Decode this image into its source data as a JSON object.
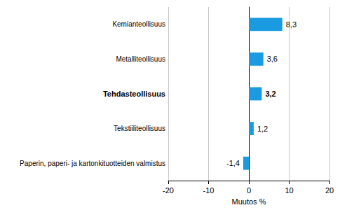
{
  "chart_data": {
    "type": "bar",
    "orientation": "horizontal",
    "categories": [
      "Kemianteollisuus",
      "Metalliteollisuus",
      "Tehdasteollisuus",
      "Tekstiiliteollisuus",
      "Paperin, paperi- ja kartonkituotteiden valmistus"
    ],
    "values": [
      8.3,
      3.6,
      3.2,
      1.2,
      -1.4
    ],
    "value_labels": [
      "8,3",
      "3,6",
      "3,2",
      "1,2",
      "-1,4"
    ],
    "color": "#1a9ae0",
    "xlabel": "Muutos %",
    "xlim": [
      -20,
      20
    ],
    "xticks": [
      -20,
      -10,
      0,
      10,
      20
    ],
    "grid": true,
    "data_labels": true
  }
}
